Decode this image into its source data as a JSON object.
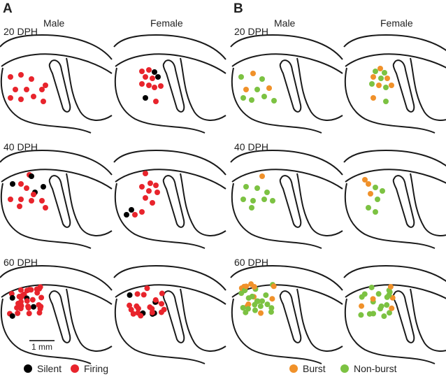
{
  "scale_bar": "1 mm",
  "panels": [
    {
      "label": "A",
      "columns": [
        "Male",
        "Female"
      ],
      "rows": [
        "20 DPH",
        "40 DPH",
        "60 DPH"
      ],
      "legend": [
        {
          "name": "Silent",
          "color": "#000000"
        },
        {
          "name": "Firing",
          "color": "#e8242c"
        }
      ]
    },
    {
      "label": "B",
      "columns": [
        "Male",
        "Female"
      ],
      "rows": [
        "20 DPH",
        "40 DPH",
        "60 DPH"
      ],
      "legend": [
        {
          "name": "Burst",
          "color": "#f0912a"
        },
        {
          "name": "Non-burst",
          "color": "#7cc242"
        }
      ]
    }
  ]
}
